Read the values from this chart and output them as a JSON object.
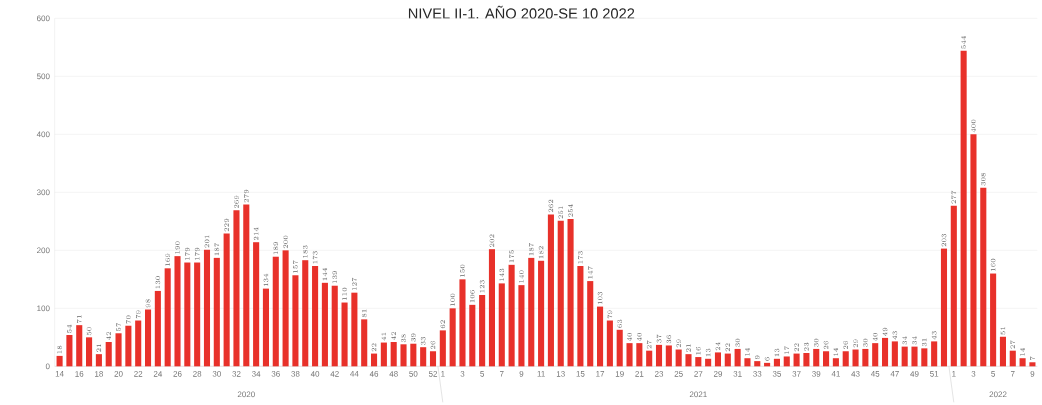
{
  "chart_data": {
    "type": "bar",
    "title": "NIVEL II-1. AÑO 2020-SE 10 2022",
    "categories": [
      "14",
      null,
      "16",
      null,
      "18",
      null,
      "20",
      null,
      "22",
      null,
      "24",
      null,
      "26",
      null,
      "28",
      null,
      "30",
      null,
      "32",
      null,
      "34",
      null,
      "36",
      null,
      "38",
      null,
      "40",
      null,
      "42",
      null,
      "44",
      null,
      "46",
      null,
      "48",
      null,
      "50",
      null,
      "52",
      "1",
      null,
      "3",
      null,
      "5",
      null,
      "7",
      null,
      "9",
      null,
      "11",
      null,
      "13",
      null,
      "15",
      null,
      "17",
      null,
      "19",
      null,
      "21",
      null,
      "23",
      null,
      "25",
      null,
      "27",
      null,
      "29",
      null,
      "31",
      null,
      "33",
      null,
      "35",
      null,
      "37",
      null,
      "39",
      null,
      "41",
      null,
      "43",
      null,
      "45",
      null,
      "47",
      null,
      "49",
      null,
      "51",
      null,
      "1",
      null,
      "3",
      null,
      "5",
      null,
      "7",
      null,
      "9"
    ],
    "values": [
      18,
      54,
      71,
      50,
      21,
      42,
      57,
      70,
      79,
      98,
      130,
      169,
      190,
      179,
      179,
      201,
      187,
      229,
      269,
      279,
      214,
      134,
      189,
      200,
      157,
      183,
      173,
      144,
      139,
      110,
      127,
      81,
      22,
      41,
      42,
      38,
      39,
      33,
      26,
      62,
      100,
      150,
      106,
      123,
      202,
      143,
      175,
      140,
      187,
      182,
      262,
      251,
      254,
      173,
      147,
      103,
      79,
      63,
      40,
      40,
      27,
      37,
      36,
      29,
      21,
      16,
      13,
      24,
      22,
      30,
      14,
      9,
      6,
      13,
      17,
      22,
      23,
      30,
      26,
      14,
      26,
      29,
      30,
      40,
      49,
      43,
      34,
      34,
      31,
      43,
      203,
      277,
      544,
      400,
      308,
      160,
      51,
      27,
      14,
      7
    ],
    "color": "#e8312a",
    "ylim": [
      0,
      600
    ],
    "yticks": [
      0,
      100,
      200,
      300,
      400,
      500,
      600
    ],
    "grid": "y",
    "data_labels": true,
    "annotations": [
      "2020",
      "2021",
      "2022"
    ]
  }
}
